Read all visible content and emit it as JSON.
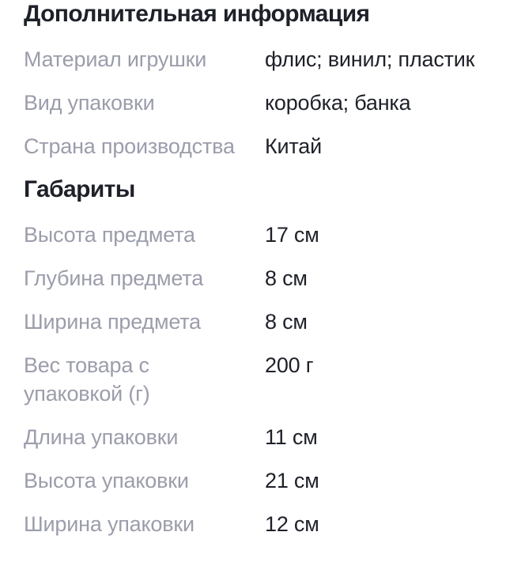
{
  "colors": {
    "text_primary": "#1e2129",
    "text_label": "#9b9dab",
    "background": "#ffffff"
  },
  "sections": [
    {
      "title": "Дополнительная информация",
      "rows": [
        {
          "label": "Материал игрушки",
          "value": "флис; винил; пластик"
        },
        {
          "label": "Вид упаковки",
          "value": "коробка; банка"
        },
        {
          "label": "Страна производства",
          "value": "Китай"
        }
      ]
    },
    {
      "title": "Габариты",
      "rows": [
        {
          "label": "Высота предмета",
          "value": "17 см"
        },
        {
          "label": "Глубина предмета",
          "value": "8 см"
        },
        {
          "label": "Ширина предмета",
          "value": "8 см"
        },
        {
          "label": "Вес товара с упаковкой (г)",
          "value": "200 г"
        },
        {
          "label": "Длина упаковки",
          "value": "11 см"
        },
        {
          "label": "Высота упаковки",
          "value": "21 см"
        },
        {
          "label": "Ширина упаковки",
          "value": "12 см"
        }
      ]
    }
  ]
}
